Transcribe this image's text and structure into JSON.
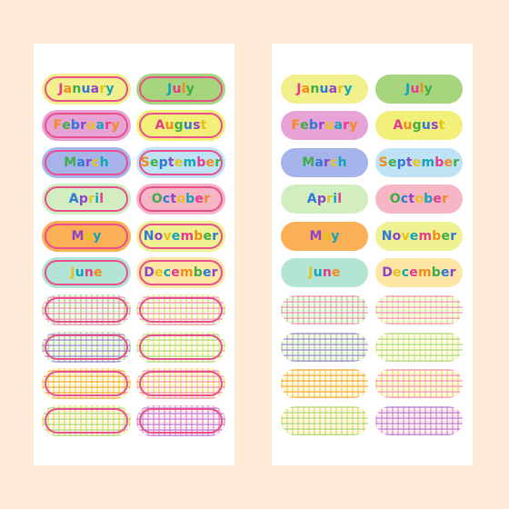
{
  "months": [
    {
      "name": "January",
      "bg": "#f2f08c",
      "ring": "#e94e8d"
    },
    {
      "name": "February",
      "bg": "#e7a3d6",
      "ring": "#e94e8d"
    },
    {
      "name": "March",
      "bg": "#a7b3eb",
      "ring": "#e94e8d"
    },
    {
      "name": "April",
      "bg": "#d2eec1",
      "ring": "#e94e8d"
    },
    {
      "name": "May",
      "bg": "#fbb055",
      "ring": "#e94e8d"
    },
    {
      "name": "June",
      "bg": "#b3e4d5",
      "ring": "#e94e8d"
    },
    {
      "name": "July",
      "bg": "#a6d57e",
      "ring": "#e94e8d"
    },
    {
      "name": "August",
      "bg": "#f3f07a",
      "ring": "#e94e8d"
    },
    {
      "name": "September",
      "bg": "#bfe3f5",
      "ring": "#e94e8d"
    },
    {
      "name": "October",
      "bg": "#f7b6c6",
      "ring": "#e94e8d"
    },
    {
      "name": "November",
      "bg": "#f0f193",
      "ring": "#e94e8d"
    },
    {
      "name": "December",
      "bg": "#fde6a6",
      "ring": "#e94e8d"
    }
  ],
  "letter_colors": [
    "#e63a8f",
    "#f28b1b",
    "#3fae49",
    "#2f79d6",
    "#8e44c7",
    "#e6c21a",
    "#12a4b8"
  ],
  "plaids": [
    {
      "a": "#f38bb3",
      "b": "#a6d57e",
      "ring": "#e94e8d"
    },
    {
      "a": "#f38bb3",
      "b": "#d8e86a",
      "ring": "#e94e8d"
    },
    {
      "a": "#9b7ed8",
      "b": "#a6d57e",
      "ring": "#e94e8d"
    },
    {
      "a": "#a6d57e",
      "b": "#e8ea6e",
      "ring": "#e94e8d"
    },
    {
      "a": "#f7a23b",
      "b": "#f5d84a",
      "ring": "#e94e8d"
    },
    {
      "a": "#f38bb3",
      "b": "#f5d84a",
      "ring": "#e94e8d"
    },
    {
      "a": "#a6d57e",
      "b": "#f5d84a",
      "ring": "#e94e8d"
    },
    {
      "a": "#b47be0",
      "b": "#f38bb3",
      "ring": "#e94e8d"
    }
  ]
}
